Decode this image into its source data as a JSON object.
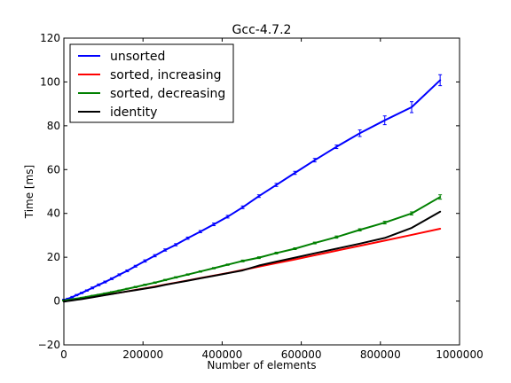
{
  "chart_data": {
    "type": "line",
    "title": "Gcc-4.7.2",
    "xlabel": "Number of elements",
    "ylabel": "Time [ms]",
    "xlim": [
      0,
      1000000
    ],
    "ylim": [
      -20,
      120
    ],
    "xticks": [
      0,
      200000,
      400000,
      600000,
      800000,
      1000000
    ],
    "xtick_labels": [
      "0",
      "200000",
      "400000",
      "600000",
      "800000",
      "1000000"
    ],
    "yticks": [
      -20,
      0,
      20,
      40,
      60,
      80,
      100,
      120
    ],
    "ytick_labels": [
      "−20",
      "0",
      "20",
      "40",
      "60",
      "80",
      "100",
      "120"
    ],
    "grid": false,
    "legend_position": "top-left",
    "x": [
      0,
      10000,
      21000,
      32000,
      45000,
      58000,
      72000,
      88000,
      104000,
      121000,
      140000,
      160000,
      181000,
      205000,
      230000,
      256000,
      283000,
      313000,
      345000,
      379000,
      414000,
      452000,
      493000,
      537000,
      584000,
      634000,
      689000,
      748000,
      811000,
      879000,
      951000
    ],
    "series": [
      {
        "name": "unsorted",
        "color": "#0000ff",
        "values": [
          0.5,
          1.0,
          1.8,
          2.7,
          3.7,
          4.8,
          6.0,
          7.4,
          8.7,
          10.2,
          12.0,
          13.8,
          15.9,
          18.3,
          20.7,
          23.3,
          25.7,
          28.7,
          31.7,
          35.0,
          38.5,
          42.8,
          47.9,
          53.0,
          58.5,
          64.3,
          70.4,
          76.6,
          82.5,
          88.5,
          100.8
        ],
        "errors": [
          0.3,
          0.3,
          0.3,
          0.3,
          0.3,
          0.3,
          0.4,
          0.4,
          0.4,
          0.4,
          0.4,
          0.4,
          0.4,
          0.5,
          0.5,
          0.5,
          0.5,
          0.5,
          0.5,
          0.6,
          0.6,
          0.6,
          0.6,
          0.7,
          0.7,
          0.8,
          0.8,
          1.5,
          2.0,
          2.5,
          2.5
        ]
      },
      {
        "name": "sorted, increasing",
        "color": "#ff0000",
        "values": [
          0.1,
          0.3,
          0.5,
          0.8,
          1.1,
          1.5,
          1.9,
          2.3,
          2.8,
          3.3,
          3.8,
          4.4,
          5.1,
          5.8,
          6.6,
          7.5,
          8.4,
          9.4,
          10.5,
          11.6,
          12.8,
          14.2,
          15.7,
          17.3,
          19.0,
          20.9,
          23.0,
          25.2,
          27.6,
          30.2,
          33.0
        ]
      },
      {
        "name": "sorted, decreasing",
        "color": "#008000",
        "values": [
          0.2,
          0.5,
          0.8,
          1.1,
          1.5,
          1.9,
          2.4,
          2.9,
          3.5,
          4.1,
          4.8,
          5.6,
          6.4,
          7.4,
          8.4,
          9.6,
          10.8,
          12.1,
          13.5,
          15.0,
          16.6,
          18.3,
          19.8,
          21.9,
          23.9,
          26.5,
          29.2,
          32.5,
          35.8,
          40.0,
          47.5
        ],
        "errors": [
          0.2,
          0.2,
          0.2,
          0.2,
          0.2,
          0.2,
          0.2,
          0.2,
          0.2,
          0.2,
          0.2,
          0.2,
          0.3,
          0.3,
          0.3,
          0.3,
          0.3,
          0.3,
          0.3,
          0.3,
          0.3,
          0.4,
          0.4,
          0.4,
          0.4,
          0.4,
          0.5,
          0.5,
          0.6,
          0.7,
          1.0
        ]
      },
      {
        "name": "identity",
        "color": "#000000",
        "values": [
          -0.3,
          0.0,
          0.3,
          0.6,
          0.9,
          1.3,
          1.7,
          2.2,
          2.7,
          3.2,
          3.8,
          4.4,
          5.0,
          5.7,
          6.4,
          7.4,
          8.3,
          9.3,
          10.4,
          11.5,
          12.7,
          14.0,
          16.2,
          18.0,
          19.8,
          21.8,
          23.9,
          26.2,
          28.8,
          33.4,
          40.8
        ]
      }
    ]
  }
}
